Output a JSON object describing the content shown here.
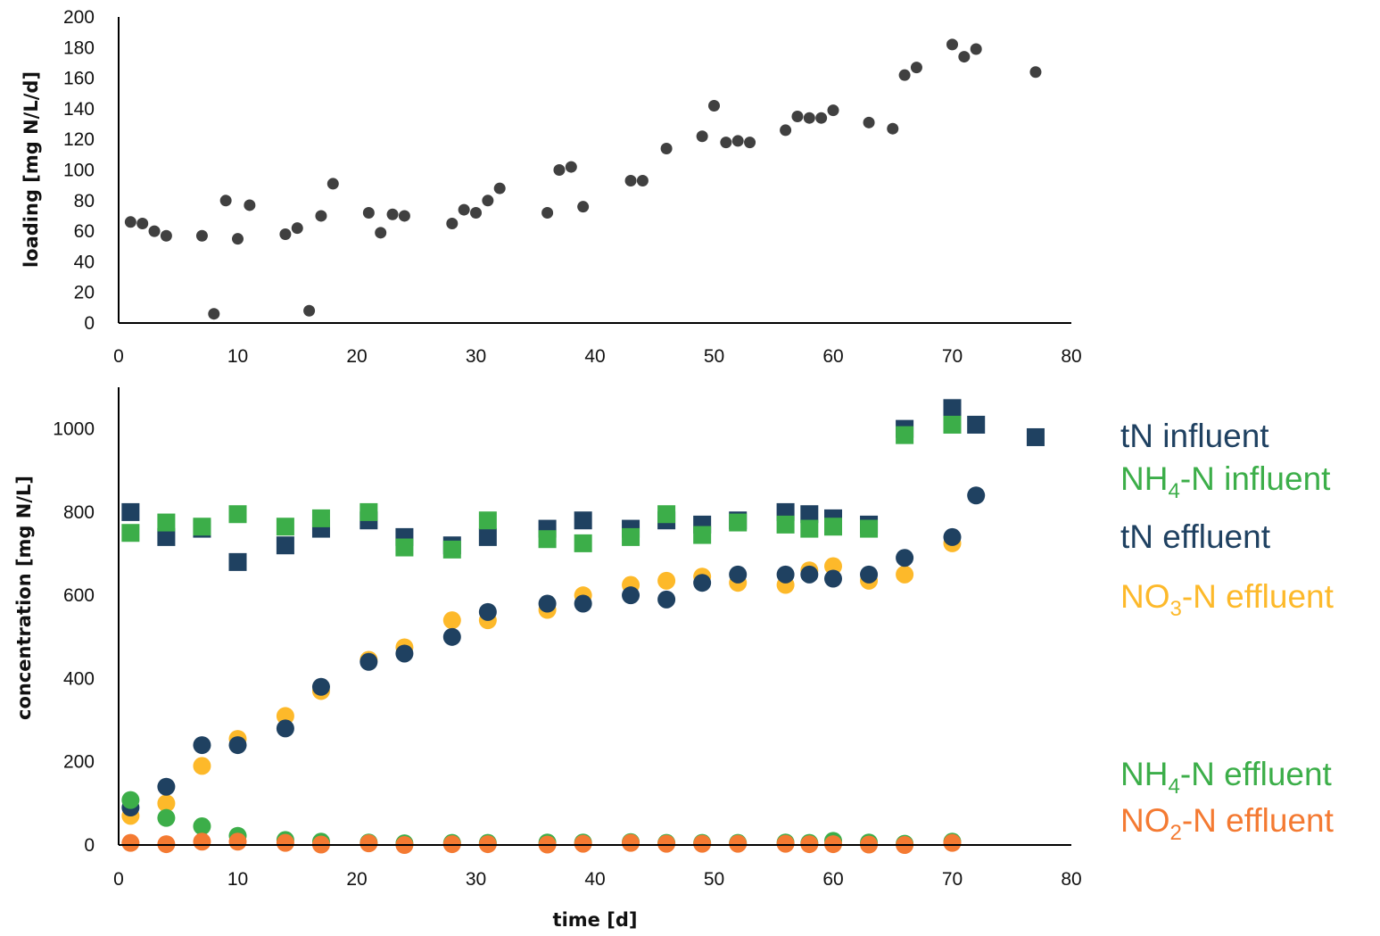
{
  "colors": {
    "tn": "#1f4161",
    "nh4": "#3cae49",
    "no3": "#fdb92a",
    "no2": "#f47a32",
    "loading": "#404040",
    "axis": "#000000"
  },
  "legend": {
    "tn_influent": "tN influent",
    "nh4_influent_prefix": "NH",
    "nh4_influent_sub": "4",
    "nh4_influent_suffix": "-N influent",
    "tn_effluent": "tN effluent",
    "no3_effluent_prefix": "NO",
    "no3_effluent_sub": "3",
    "no3_effluent_suffix": "-N effluent",
    "nh4_effluent_prefix": "NH",
    "nh4_effluent_sub": "4",
    "nh4_effluent_suffix": "-N effluent",
    "no2_effluent_prefix": "NO",
    "no2_effluent_sub": "2",
    "no2_effluent_suffix": "-N effluent"
  },
  "chart_data": [
    {
      "type": "scatter",
      "ylabel": "loading [mg N/L/d]",
      "xlabel": "",
      "xlim": [
        0,
        80
      ],
      "ylim": [
        0,
        200
      ],
      "xticks": [
        0,
        10,
        20,
        30,
        40,
        50,
        60,
        70,
        80
      ],
      "yticks": [
        0,
        20,
        40,
        60,
        80,
        100,
        120,
        140,
        160,
        180,
        200
      ],
      "grid": false,
      "series": [
        {
          "marker": "circle",
          "points": [
            [
              1,
              66
            ],
            [
              2,
              65
            ],
            [
              3,
              60
            ],
            [
              4,
              57
            ],
            [
              7,
              57
            ],
            [
              8,
              6
            ],
            [
              9,
              80
            ],
            [
              10,
              55
            ],
            [
              11,
              77
            ],
            [
              14,
              58
            ],
            [
              15,
              62
            ],
            [
              16,
              8
            ],
            [
              17,
              70
            ],
            [
              18,
              91
            ],
            [
              21,
              72
            ],
            [
              22,
              59
            ],
            [
              23,
              71
            ],
            [
              24,
              70
            ],
            [
              28,
              65
            ],
            [
              29,
              74
            ],
            [
              30,
              72
            ],
            [
              31,
              80
            ],
            [
              32,
              88
            ],
            [
              36,
              72
            ],
            [
              37,
              100
            ],
            [
              38,
              102
            ],
            [
              39,
              76
            ],
            [
              43,
              93
            ],
            [
              44,
              93
            ],
            [
              46,
              114
            ],
            [
              49,
              122
            ],
            [
              50,
              142
            ],
            [
              51,
              118
            ],
            [
              52,
              119
            ],
            [
              53,
              118
            ],
            [
              56,
              126
            ],
            [
              57,
              135
            ],
            [
              58,
              134
            ],
            [
              59,
              134
            ],
            [
              60,
              139
            ],
            [
              63,
              131
            ],
            [
              65,
              127
            ],
            [
              66,
              162
            ],
            [
              67,
              167
            ],
            [
              70,
              182
            ],
            [
              71,
              174
            ],
            [
              72,
              179
            ],
            [
              77,
              164
            ]
          ]
        }
      ]
    },
    {
      "type": "scatter",
      "ylabel": "concentration [mg N/L]",
      "xlabel": "time [d]",
      "xlim": [
        0,
        80
      ],
      "ylim": [
        0,
        1100
      ],
      "xticks": [
        0,
        10,
        20,
        30,
        40,
        50,
        60,
        70,
        80
      ],
      "yticks": [
        0,
        200,
        400,
        600,
        800,
        1000
      ],
      "grid": false,
      "series": [
        {
          "name": "tN influent",
          "marker": "square",
          "color_key": "tn",
          "points": [
            [
              1,
              800
            ],
            [
              4,
              740
            ],
            [
              7,
              760
            ],
            [
              10,
              680
            ],
            [
              14,
              720
            ],
            [
              17,
              760
            ],
            [
              21,
              780
            ],
            [
              24,
              740
            ],
            [
              28,
              720
            ],
            [
              31,
              740
            ],
            [
              36,
              760
            ],
            [
              39,
              780
            ],
            [
              43,
              760
            ],
            [
              46,
              780
            ],
            [
              49,
              770
            ],
            [
              52,
              780
            ],
            [
              56,
              800
            ],
            [
              58,
              795
            ],
            [
              60,
              785
            ],
            [
              63,
              770
            ],
            [
              66,
              1000
            ],
            [
              70,
              1050
            ],
            [
              72,
              1010
            ],
            [
              77,
              980
            ]
          ]
        },
        {
          "name": "NH4-N influent",
          "marker": "square",
          "color_key": "nh4",
          "points": [
            [
              1,
              750
            ],
            [
              4,
              775
            ],
            [
              7,
              765
            ],
            [
              10,
              795
            ],
            [
              14,
              765
            ],
            [
              17,
              785
            ],
            [
              21,
              800
            ],
            [
              24,
              715
            ],
            [
              28,
              710
            ],
            [
              31,
              780
            ],
            [
              36,
              735
            ],
            [
              39,
              725
            ],
            [
              43,
              740
            ],
            [
              46,
              795
            ],
            [
              49,
              745
            ],
            [
              52,
              775
            ],
            [
              56,
              770
            ],
            [
              58,
              760
            ],
            [
              60,
              765
            ],
            [
              63,
              760
            ],
            [
              66,
              985
            ],
            [
              70,
              1010
            ]
          ]
        },
        {
          "name": "NO3-N effluent",
          "marker": "circle",
          "color_key": "no3",
          "points": [
            [
              1,
              70
            ],
            [
              4,
              100
            ],
            [
              7,
              190
            ],
            [
              10,
              255
            ],
            [
              14,
              310
            ],
            [
              17,
              370
            ],
            [
              21,
              445
            ],
            [
              24,
              475
            ],
            [
              28,
              540
            ],
            [
              31,
              540
            ],
            [
              36,
              565
            ],
            [
              39,
              600
            ],
            [
              43,
              625
            ],
            [
              46,
              635
            ],
            [
              49,
              645
            ],
            [
              52,
              630
            ],
            [
              56,
              625
            ],
            [
              58,
              660
            ],
            [
              60,
              670
            ],
            [
              63,
              635
            ],
            [
              66,
              650
            ],
            [
              70,
              725
            ]
          ]
        },
        {
          "name": "tN effluent",
          "marker": "circle",
          "color_key": "tn",
          "points": [
            [
              1,
              90
            ],
            [
              4,
              140
            ],
            [
              7,
              240
            ],
            [
              10,
              240
            ],
            [
              14,
              280
            ],
            [
              17,
              380
            ],
            [
              21,
              440
            ],
            [
              24,
              460
            ],
            [
              28,
              500
            ],
            [
              31,
              560
            ],
            [
              36,
              580
            ],
            [
              39,
              580
            ],
            [
              43,
              600
            ],
            [
              46,
              590
            ],
            [
              49,
              630
            ],
            [
              52,
              650
            ],
            [
              56,
              650
            ],
            [
              58,
              650
            ],
            [
              60,
              640
            ],
            [
              63,
              650
            ],
            [
              66,
              690
            ],
            [
              70,
              740
            ],
            [
              72,
              840
            ]
          ]
        },
        {
          "name": "NH4-N effluent",
          "marker": "circle",
          "color_key": "nh4",
          "points": [
            [
              1,
              108
            ],
            [
              4,
              65
            ],
            [
              7,
              45
            ],
            [
              10,
              22
            ],
            [
              14,
              12
            ],
            [
              17,
              8
            ],
            [
              21,
              6
            ],
            [
              24,
              4
            ],
            [
              28,
              5
            ],
            [
              31,
              5
            ],
            [
              36,
              6
            ],
            [
              39,
              6
            ],
            [
              43,
              7
            ],
            [
              46,
              5
            ],
            [
              49,
              5
            ],
            [
              52,
              5
            ],
            [
              56,
              6
            ],
            [
              58,
              5
            ],
            [
              60,
              10
            ],
            [
              63,
              6
            ],
            [
              66,
              3
            ],
            [
              70,
              8
            ]
          ]
        },
        {
          "name": "NO2-N effluent",
          "marker": "circle",
          "color_key": "no2",
          "points": [
            [
              1,
              5
            ],
            [
              4,
              2
            ],
            [
              7,
              8
            ],
            [
              10,
              8
            ],
            [
              14,
              5
            ],
            [
              17,
              1
            ],
            [
              21,
              4
            ],
            [
              24,
              0
            ],
            [
              28,
              2
            ],
            [
              31,
              2
            ],
            [
              36,
              1
            ],
            [
              39,
              3
            ],
            [
              43,
              5
            ],
            [
              46,
              3
            ],
            [
              49,
              3
            ],
            [
              52,
              3
            ],
            [
              56,
              3
            ],
            [
              58,
              2
            ],
            [
              60,
              2
            ],
            [
              63,
              1
            ],
            [
              66,
              0
            ],
            [
              70,
              5
            ]
          ]
        }
      ]
    }
  ]
}
